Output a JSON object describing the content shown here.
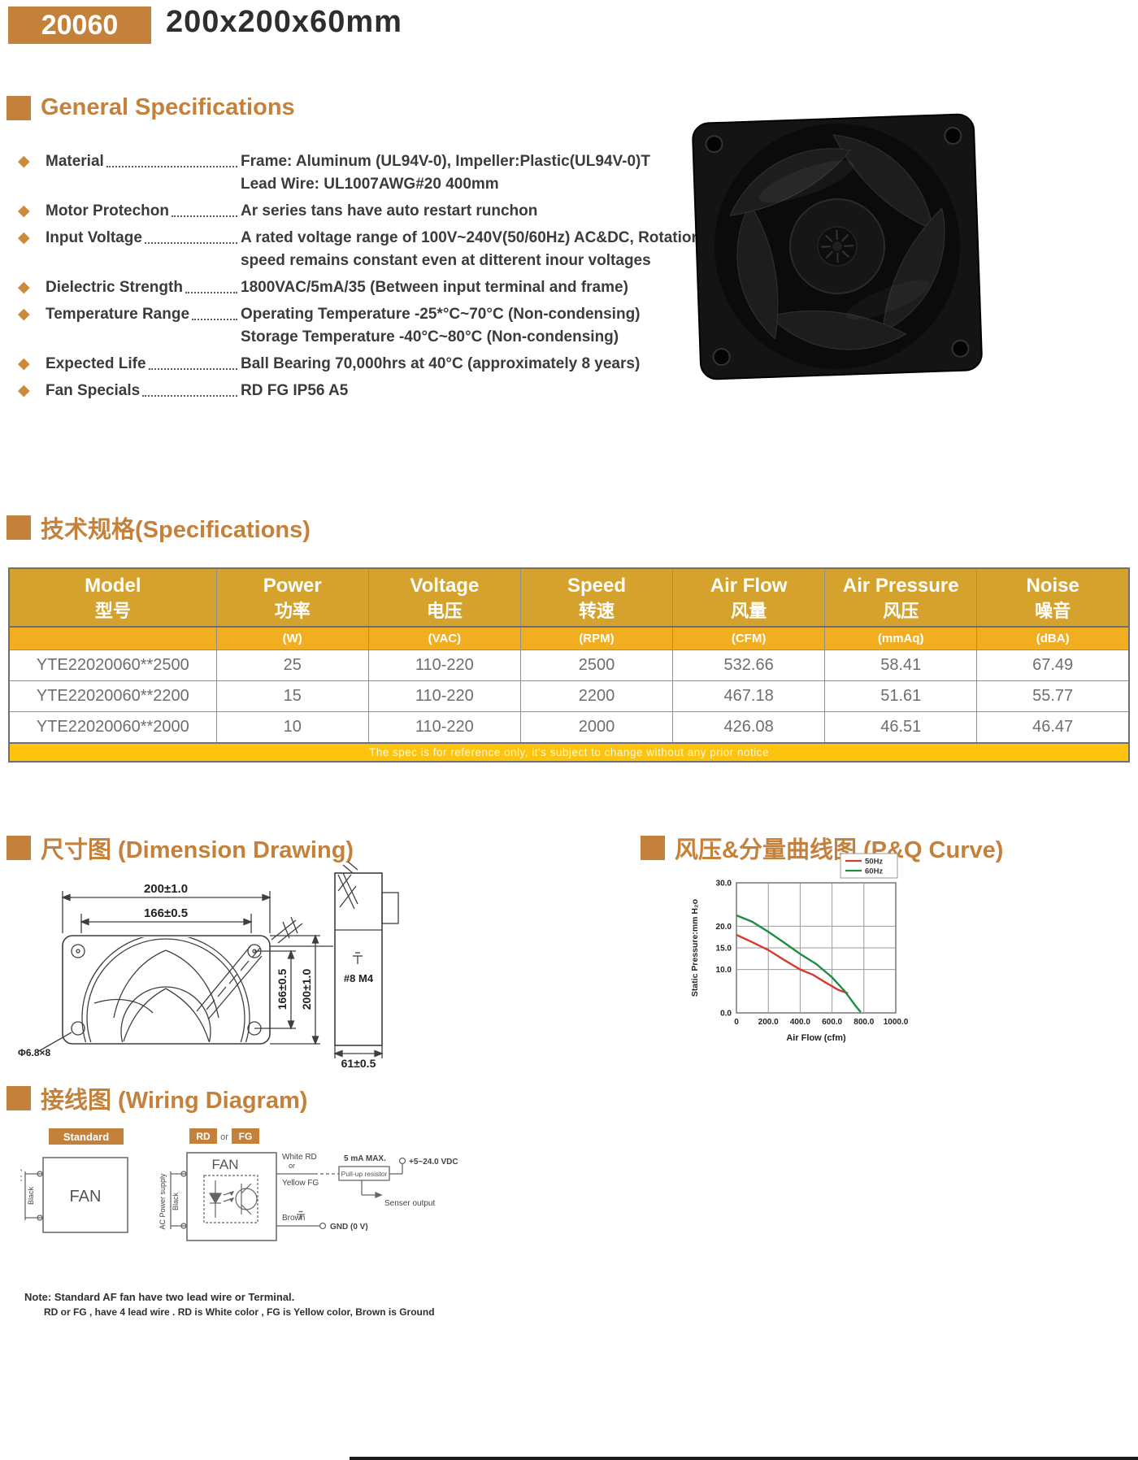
{
  "header": {
    "badge": "20060",
    "title": "200x200x60mm"
  },
  "sections": {
    "general": "General Specifications",
    "specs": "技术规格(Specifications)",
    "dimension": "尺寸图 (Dimension Drawing)",
    "pq": "风压&分量曲线图 (P&Q Curve)",
    "wiring": "接线图 (Wiring Diagram)"
  },
  "general_specs": [
    {
      "label": "Material",
      "lines": [
        "Frame: Aluminum (UL94V-0), Impeller:Plastic(UL94V-0)T",
        "Lead Wire: UL1007AWG#20 400mm"
      ]
    },
    {
      "label": "Motor Protechon",
      "lines": [
        "Ar series tans have auto restart runchon"
      ]
    },
    {
      "label": "Input Voltage",
      "lines": [
        "A rated voltage range of 100V~240V(50/60Hz) AC&DC, Rotation",
        "speed remains constant even at ditterent inour voltages"
      ]
    },
    {
      "label": "Dielectric Strength",
      "lines": [
        "1800VAC/5mA/35 (Between input terminal and frame)"
      ]
    },
    {
      "label": "Temperature Range",
      "lines": [
        "Operating Temperature -25*°C~70°C (Non-condensing)",
        "Storage Temperature -40°C~80°C (Non-condensing)"
      ]
    },
    {
      "label": "Expected Life",
      "lines": [
        "Ball Bearing 70,000hrs at 40°C (approximately 8 years)"
      ]
    },
    {
      "label": "Fan Specials",
      "lines": [
        "RD FG IP56 A5"
      ]
    }
  ],
  "spec_table": {
    "columns": [
      {
        "en": "Model",
        "cn": "型号",
        "unit": ""
      },
      {
        "en": "Power",
        "cn": "功率",
        "unit": "(W)"
      },
      {
        "en": "Voltage",
        "cn": "电压",
        "unit": "(VAC)"
      },
      {
        "en": "Speed",
        "cn": "转速",
        "unit": "(RPM)"
      },
      {
        "en": "Air Flow",
        "cn": "风量",
        "unit": "(CFM)"
      },
      {
        "en": "Air Pressure",
        "cn": "风压",
        "unit": "(mmAq)"
      },
      {
        "en": "Noise",
        "cn": "噪音",
        "unit": "(dBA)"
      }
    ],
    "rows": [
      [
        "YTE22020060**2500",
        "25",
        "110-220",
        "2500",
        "532.66",
        "58.41",
        "67.49"
      ],
      [
        "YTE22020060**2200",
        "15",
        "110-220",
        "2200",
        "467.18",
        "51.61",
        "55.77"
      ],
      [
        "YTE22020060**2000",
        "10",
        "110-220",
        "2000",
        "426.08",
        "46.51",
        "46.47"
      ]
    ],
    "footnote": "The spec is for reference only, it's subject to change without any prior notice"
  },
  "dimension_labels": {
    "width": "200±1.0",
    "inner_width": "166±0.5",
    "inner_height": "166±0.5",
    "height": "200±1.0",
    "screw": "#8 M4",
    "depth": "61±0.5",
    "hole": "Φ6.8×8"
  },
  "chart_data": {
    "type": "line",
    "title": "",
    "xlabel": "Air Flow (cfm)",
    "ylabel": "Static Pressure:mm H₂o",
    "xlim": [
      0,
      1000
    ],
    "ylim": [
      0,
      30
    ],
    "x_ticks": [
      0,
      200,
      400,
      600,
      800,
      1000
    ],
    "x_tick_labels": [
      "0",
      "200.0",
      "400.0",
      "600.0",
      "800.0",
      "1000.0"
    ],
    "y_ticks": [
      0,
      10,
      15,
      20,
      30
    ],
    "y_tick_labels": [
      "0.0",
      "10.0",
      "15.0",
      "20.0",
      "30.0"
    ],
    "grid": true,
    "legend_position": "top-right",
    "series": [
      {
        "name": "50Hz",
        "color": "#d63b2f",
        "points": [
          [
            0,
            18
          ],
          [
            100,
            16.3
          ],
          [
            200,
            14.5
          ],
          [
            300,
            12.2
          ],
          [
            400,
            10.0
          ],
          [
            480,
            8.8
          ],
          [
            560,
            7.0
          ],
          [
            640,
            5.3
          ],
          [
            700,
            4.5
          ]
        ]
      },
      {
        "name": "60Hz",
        "color": "#1e8c45",
        "points": [
          [
            0,
            22.5
          ],
          [
            100,
            21.0
          ],
          [
            200,
            18.7
          ],
          [
            300,
            16.2
          ],
          [
            400,
            13.6
          ],
          [
            500,
            11.3
          ],
          [
            600,
            8.2
          ],
          [
            680,
            5.0
          ],
          [
            750,
            1.5
          ],
          [
            780,
            0.2
          ]
        ]
      }
    ]
  },
  "wiring": {
    "standard_badge": "Standard",
    "rd_badge": "RD",
    "or_label": "or",
    "fg_badge": "FG",
    "fan_label": "FAN",
    "ac_supply": "AC Power supply",
    "black": "Black",
    "white_rd": "White  RD",
    "or2": "or",
    "yellow_fg": "Yellow FG",
    "ma_max": "5 mA MAX.",
    "vdc": "+5~24.0 VDC",
    "pullup": "Pull-up resistor",
    "senser": "Senser output",
    "brown": "Brown",
    "gnd": "GND (0 V)",
    "note1": "Note: Standard AF fan have two lead wire or Terminal.",
    "note2": "RD or FG , have 4 lead wire . RD is White color , FG is Yellow color, Brown is Ground"
  },
  "colors": {
    "accent": "#c4813c",
    "table_header": "#d5a32d",
    "units_row": "#f0ae20",
    "footer_band": "#fec40d",
    "hz50": "#d63b2f",
    "hz60": "#1e8c45"
  }
}
